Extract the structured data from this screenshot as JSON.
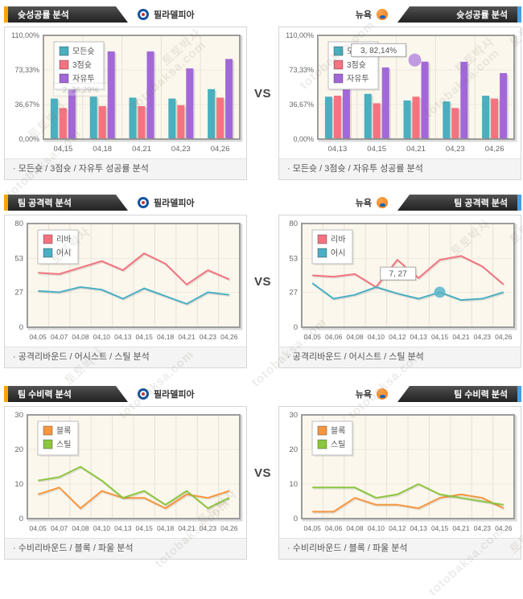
{
  "page": {
    "vs_label": "VS",
    "watermarks": {
      "w1": "토토박사",
      "w2": "totobaksa.com"
    }
  },
  "colors": {
    "all_shots_teal": "#4AAFBE",
    "three_point_red": "#F4737F",
    "free_throw_purple": "#A268D8",
    "rebound_red": "#F4737F",
    "assist_teal": "#4AAFC4",
    "block_orange": "#F8963F",
    "steal_green": "#8DC63F",
    "accent_orange": "#F7A600",
    "accent_blue": "#4A9EE0",
    "tab_dark": "#2E2E2E",
    "plot_bg_cream": "#FBF7ED"
  },
  "rows": [
    {
      "caption": "· 모든슛 / 3점슛 / 자유투 성공률 분석",
      "left": {
        "tab_label": "슛성공률 분석",
        "team": "필라델피아"
      },
      "right": {
        "tab_label": "슛성공률 분석",
        "team": "뉴욕"
      }
    },
    {
      "caption": "· 공격리바운드 / 어시스트 / 스틸 분석",
      "left": {
        "tab_label": "팀 공격력 분석",
        "team": "필라델피아"
      },
      "right": {
        "tab_label": "팀 공격력 분석",
        "team": "뉴욕"
      }
    },
    {
      "caption": "· 수비리바운드 / 블록 / 파울 분석",
      "left": {
        "tab_label": "팀 수비력 분석",
        "team": "필라델피아"
      },
      "right": {
        "tab_label": "팀 수비력 분석",
        "team": "뉴욕"
      }
    }
  ],
  "chart_data": [
    {
      "type": "bar",
      "title": "슛성공률 분석 - 필라델피아",
      "y_max": 110,
      "margin_left": 48,
      "y_ticks": [
        {
          "v": 0,
          "label": "0,00%"
        },
        {
          "v": 36.67,
          "label": "36,67%"
        },
        {
          "v": 73.33,
          "label": "73,33%"
        },
        {
          "v": 110,
          "label": "110,00%"
        }
      ],
      "categories": [
        "04,15",
        "04,18",
        "04,21",
        "04,23",
        "04,26"
      ],
      "series": [
        {
          "name": "모든슛",
          "color": "#4AAFBE",
          "values": [
            43,
            45,
            44,
            43,
            53
          ]
        },
        {
          "name": "3점슛",
          "color": "#F4737F",
          "values": [
            33,
            35,
            35,
            36,
            44
          ]
        },
        {
          "name": "자유투",
          "color": "#A268D8",
          "values": [
            87,
            93,
            93,
            75,
            85
          ]
        }
      ],
      "tooltip": {
        "text": "2, 36,29%",
        "fx": 0.05,
        "fy": 0.46,
        "opacity": 0.28
      }
    },
    {
      "type": "bar",
      "title": "슛성공률 분석 - 뉴욕",
      "y_max": 110,
      "margin_left": 48,
      "y_ticks": [
        {
          "v": 0,
          "label": "0,00%"
        },
        {
          "v": 36.67,
          "label": "36,67%"
        },
        {
          "v": 73.33,
          "label": "73,33%"
        },
        {
          "v": 110,
          "label": "110,00%"
        }
      ],
      "categories": [
        "04,13",
        "04,15",
        "04,21",
        "04,23",
        "04,26"
      ],
      "series": [
        {
          "name": "모든슛",
          "color": "#4AAFBE",
          "values": [
            45,
            48,
            41,
            40,
            46
          ]
        },
        {
          "name": "3점슛",
          "color": "#F4737F",
          "values": [
            46,
            38,
            45,
            33,
            43
          ]
        },
        {
          "name": "자유투",
          "color": "#A268D8",
          "values": [
            65,
            76,
            82.14,
            82,
            70
          ]
        }
      ],
      "tooltip": {
        "text": "3, 82,14%",
        "fx": 0.17,
        "fy": 0.08,
        "opacity": 1
      },
      "marker": {
        "series": 2,
        "index": 2,
        "r": 8,
        "color": "#B68BDF"
      }
    },
    {
      "type": "line",
      "title": "팀 공격력 분석 - 필라델피아",
      "y_max": 80,
      "margin_left": 28,
      "y_ticks": [
        {
          "v": 0,
          "label": "0"
        },
        {
          "v": 27,
          "label": "27"
        },
        {
          "v": 53,
          "label": "53"
        },
        {
          "v": 80,
          "label": "80"
        }
      ],
      "categories": [
        "04,05",
        "04,07",
        "04,08",
        "04,10",
        "04,13",
        "04,15",
        "04,18",
        "04,21",
        "04,23",
        "04,26"
      ],
      "series": [
        {
          "name": "리바",
          "color": "#F4737F",
          "values": [
            42,
            41,
            46,
            51,
            44,
            57,
            49,
            33,
            44,
            37
          ]
        },
        {
          "name": "어시",
          "color": "#4AAFC4",
          "values": [
            28,
            27,
            31,
            29,
            22,
            30,
            24,
            18,
            27,
            25
          ]
        }
      ]
    },
    {
      "type": "line",
      "title": "팀 공격력 분석 - 뉴욕",
      "y_max": 80,
      "margin_left": 28,
      "y_ticks": [
        {
          "v": 0,
          "label": "0"
        },
        {
          "v": 27,
          "label": "27"
        },
        {
          "v": 53,
          "label": "53"
        },
        {
          "v": 80,
          "label": "80"
        }
      ],
      "categories": [
        "04,05",
        "04,06",
        "04,08",
        "04,10",
        "04,12",
        "04,13",
        "04,15",
        "04,21",
        "04,23",
        "04,26"
      ],
      "series": [
        {
          "name": "리바",
          "color": "#F4737F",
          "values": [
            40,
            39,
            41,
            31,
            52,
            38,
            52,
            55,
            47,
            33
          ]
        },
        {
          "name": "어시",
          "color": "#4AAFC4",
          "values": [
            34,
            22,
            25,
            31,
            26,
            22,
            27,
            21,
            22,
            27
          ]
        }
      ],
      "tooltip": {
        "text": "7, 27",
        "fx": 0.37,
        "fy": 0.42,
        "opacity": 1
      },
      "marker": {
        "series": 1,
        "index": 6,
        "r": 7,
        "color": "#58B6C9"
      }
    },
    {
      "type": "line",
      "title": "팀 수비력 분석 - 필라델피아",
      "y_max": 30,
      "margin_left": 28,
      "y_ticks": [
        {
          "v": 0,
          "label": "0"
        },
        {
          "v": 10,
          "label": "10"
        },
        {
          "v": 20,
          "label": "20"
        },
        {
          "v": 30,
          "label": "30"
        }
      ],
      "categories": [
        "04,05",
        "04,07",
        "04,08",
        "04,10",
        "04,13",
        "04,15",
        "04,18",
        "04,21",
        "04,23",
        "04,26"
      ],
      "series": [
        {
          "name": "블록",
          "color": "#F8963F",
          "values": [
            7,
            9,
            3,
            8,
            6,
            6,
            3,
            7,
            6,
            8
          ]
        },
        {
          "name": "스틸",
          "color": "#8DC63F",
          "values": [
            11,
            12,
            15,
            11,
            6,
            8,
            4,
            8,
            3,
            6
          ]
        }
      ]
    },
    {
      "type": "line",
      "title": "팀 수비력 분석 - 뉴욕",
      "y_max": 30,
      "margin_left": 28,
      "y_ticks": [
        {
          "v": 0,
          "label": "0"
        },
        {
          "v": 10,
          "label": "10"
        },
        {
          "v": 20,
          "label": "20"
        },
        {
          "v": 30,
          "label": "30"
        }
      ],
      "categories": [
        "04,05",
        "04,06",
        "04,08",
        "04,10",
        "04,12",
        "04,13",
        "04,15",
        "04,21",
        "04,23",
        "04,26"
      ],
      "series": [
        {
          "name": "블록",
          "color": "#F8963F",
          "values": [
            2,
            2,
            6,
            4,
            4,
            3,
            6,
            7,
            6,
            3
          ]
        },
        {
          "name": "스틸",
          "color": "#8DC63F",
          "values": [
            9,
            9,
            9,
            6,
            7,
            10,
            7,
            6,
            5,
            4
          ]
        }
      ]
    }
  ]
}
